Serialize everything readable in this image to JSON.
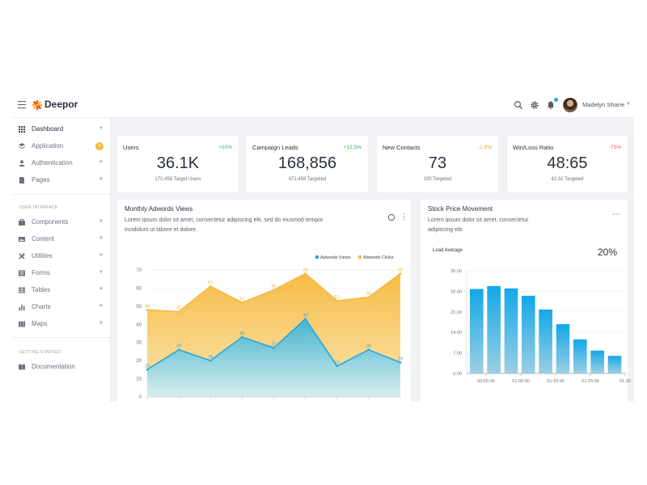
{
  "header": {
    "brand": "Deepor",
    "user_name": "Madelyn Shane"
  },
  "sidebar": {
    "items": [
      {
        "label": "Dashboard",
        "icon": "grid-icon",
        "chevron": true
      },
      {
        "label": "Application",
        "icon": "layers-icon",
        "badge": "4"
      },
      {
        "label": "Authentication",
        "icon": "user-icon",
        "chevron": true
      },
      {
        "label": "Pages",
        "icon": "page-icon",
        "chevron": true
      }
    ],
    "section_ui": "USER INTERFACE",
    "ui_items": [
      {
        "label": "Components",
        "icon": "briefcase-icon"
      },
      {
        "label": "Content",
        "icon": "image-icon"
      },
      {
        "label": "Utilities",
        "icon": "tools-icon"
      },
      {
        "label": "Forms",
        "icon": "form-icon"
      },
      {
        "label": "Tables",
        "icon": "table-icon"
      },
      {
        "label": "Charts",
        "icon": "bar-chart-icon"
      },
      {
        "label": "Maps",
        "icon": "map-icon"
      }
    ],
    "section_start": "GETTING STARTED",
    "doc_item": {
      "label": "Documentation",
      "icon": "book-icon"
    }
  },
  "stats": [
    {
      "title": "Users",
      "delta": "+10%",
      "value": "36.1K",
      "sub": "172,458 Target Users"
    },
    {
      "title": "Campaign Leads",
      "delta": "+12.5%",
      "value": "168,856",
      "sub": "472,458 Targeted"
    },
    {
      "title": "New Contacts",
      "delta": "-2.8%",
      "value": "73",
      "sub": "100 Targeted"
    },
    {
      "title": "Win/Loss Ratio",
      "delta": "-75%",
      "value": "48:65",
      "sub": "42:32 Targeted"
    }
  ],
  "adwords": {
    "title": "Monthly Adwords Views",
    "desc_line1": "Lorem ipsum dolor sit amet, consectetur adipiscing elit, sed do eiusmod tempor",
    "desc_line2": "incididunt ut labore et dolore."
  },
  "stock": {
    "title": "Stock Price Movement",
    "desc_line1": "Lorem ipsum dolor sit amet, consectetur",
    "desc_line2": "adipiscing elit.",
    "load_label": "Load Average",
    "load_value": "20%"
  },
  "chart_data": [
    {
      "type": "area",
      "title": "Monthly Adwords Views",
      "y_ticks": [
        "0",
        "10",
        "20",
        "30",
        "40",
        "50",
        "60",
        "70"
      ],
      "ylim": [
        0,
        70
      ],
      "series": [
        {
          "name": "Adwords Views",
          "color": "#27a6d9",
          "values": [
            15,
            26,
            20,
            33,
            27,
            43,
            17,
            26,
            19
          ],
          "labels": [
            "15",
            "26",
            "20",
            "33",
            "27",
            "43",
            "17",
            "26",
            "19"
          ]
        },
        {
          "name": "Adwords Clicks",
          "color": "#f5b940",
          "values": [
            48,
            47,
            61,
            52,
            59,
            68,
            53,
            55,
            68
          ],
          "labels": [
            "48",
            "47",
            "61",
            "52",
            "59",
            "68",
            "53",
            "55",
            "68"
          ]
        }
      ],
      "legend": "top-right"
    },
    {
      "type": "bar",
      "title": "Load Average",
      "y_ticks": [
        "0.00",
        "7.00",
        "14.00",
        "21.00",
        "28.00",
        "35.00"
      ],
      "ylim": [
        0,
        35
      ],
      "x_ticks": [
        "00:55:00",
        "01:05:00",
        "01:15:00",
        "01:25:00",
        "01:35"
      ],
      "values": [
        28.8,
        29.8,
        29.0,
        26.5,
        21.8,
        16.8,
        11.6,
        7.8,
        6.0
      ],
      "color": "#12a8e8"
    }
  ]
}
